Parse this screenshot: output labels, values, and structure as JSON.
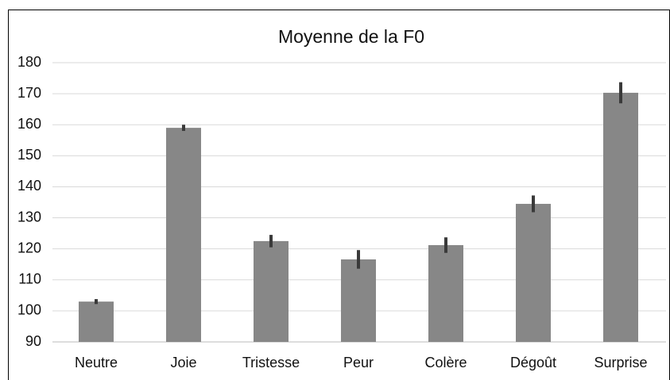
{
  "chart_data": {
    "type": "bar",
    "title": "Moyenne de la F0",
    "categories": [
      "Neutre",
      "Joie",
      "Tristesse",
      "Peur",
      "Colère",
      "Dégoût",
      "Surprise"
    ],
    "values": [
      103,
      159,
      122.5,
      116.6,
      121.2,
      134.5,
      170.3
    ],
    "errors": [
      0.8,
      1.0,
      2.0,
      3.0,
      2.5,
      2.7,
      3.4
    ],
    "color": "#878787",
    "error_color": "#3a3a3a",
    "ylim": [
      90,
      180
    ],
    "yticks": [
      90,
      100,
      110,
      120,
      130,
      140,
      150,
      160,
      170,
      180
    ],
    "grid": true
  }
}
